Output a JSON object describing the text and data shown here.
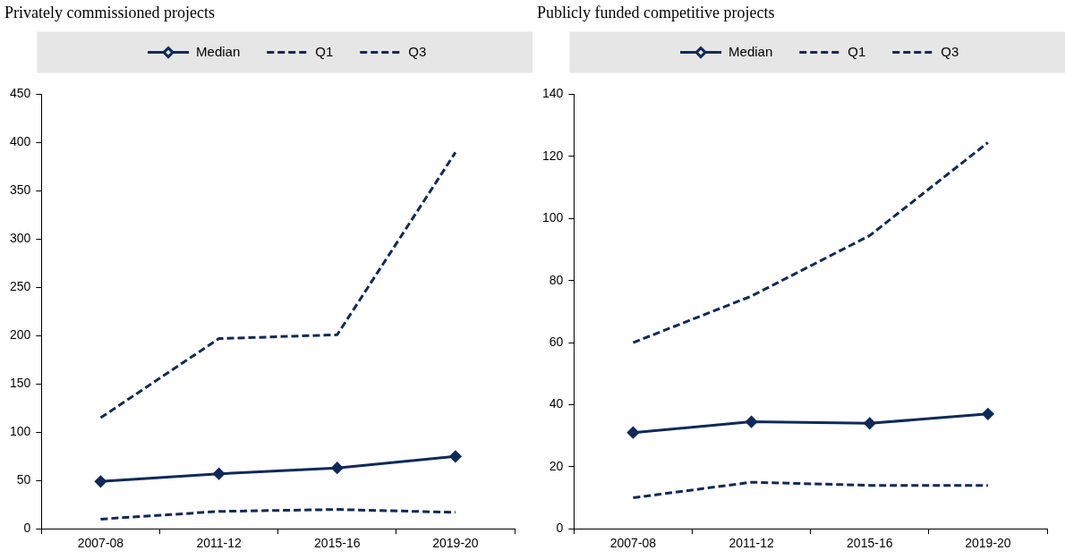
{
  "chart_data": [
    {
      "type": "line",
      "title": "Privately commissioned projects",
      "categories": [
        "2007-08",
        "2011-12",
        "2015-16",
        "2019-20"
      ],
      "series": [
        {
          "name": "Median",
          "color": "#0f2a5a",
          "values": [
            49,
            57,
            63,
            75
          ],
          "marker": "diamond",
          "line_style": "solid"
        },
        {
          "name": "Q1",
          "color": "#0f2a5a",
          "values": [
            10,
            18,
            20,
            17
          ],
          "marker": "none",
          "line_style": "dashed"
        },
        {
          "name": "Q3",
          "color": "#0f2a5a",
          "values": [
            115,
            197,
            201,
            390
          ],
          "marker": "none",
          "line_style": "dashed"
        }
      ],
      "ylim": [
        0,
        450
      ],
      "yticks": [
        0,
        50,
        100,
        150,
        200,
        250,
        300,
        350,
        400,
        450
      ],
      "grid": false,
      "legend": "top"
    },
    {
      "type": "line",
      "title": "Publicly funded competitive projects",
      "categories": [
        "2007-08",
        "2011-12",
        "2015-16",
        "2019-20"
      ],
      "series": [
        {
          "name": "Median",
          "color": "#0f2a5a",
          "values": [
            31,
            34.5,
            34,
            37
          ],
          "marker": "diamond",
          "line_style": "solid"
        },
        {
          "name": "Q1",
          "color": "#0f2a5a",
          "values": [
            10,
            15,
            14,
            14
          ],
          "marker": "none",
          "line_style": "dashed"
        },
        {
          "name": "Q3",
          "color": "#0f2a5a",
          "values": [
            60,
            75,
            94.5,
            124.5
          ],
          "marker": "none",
          "line_style": "dashed"
        }
      ],
      "ylim": [
        0,
        140
      ],
      "yticks": [
        0,
        20,
        40,
        60,
        80,
        100,
        120,
        140
      ],
      "grid": false,
      "legend": "top"
    }
  ]
}
